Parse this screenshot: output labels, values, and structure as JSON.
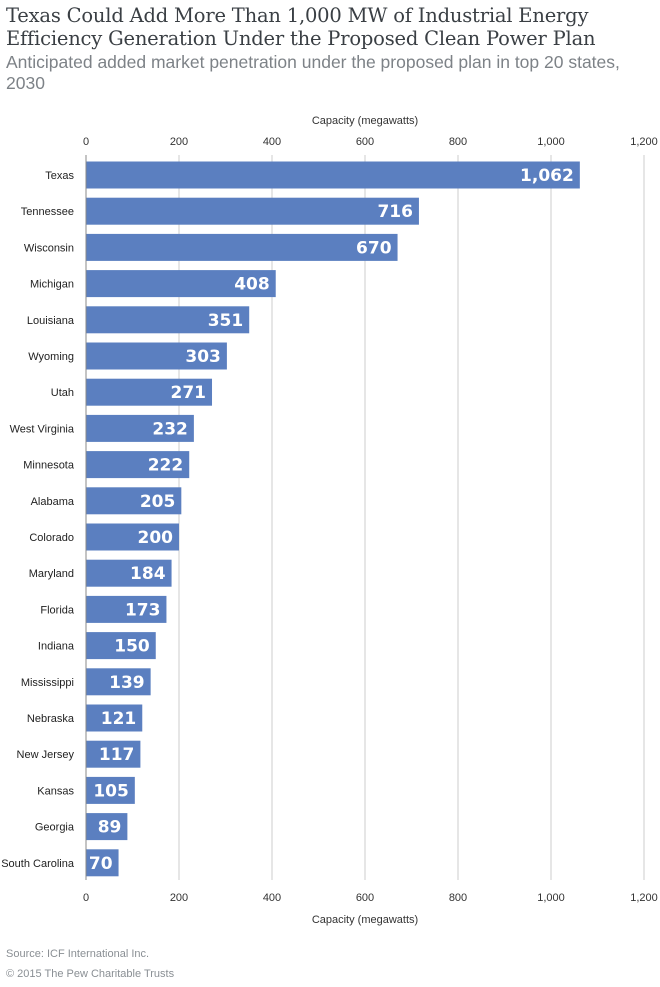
{
  "title": "Texas Could Add More Than 1,000 MW of Industrial Energy Efficiency Generation Under the Proposed Clean Power Plan",
  "subtitle": "Anticipated added market penetration under the proposed plan in top 20 states, 2030",
  "source": "Source: ICF International Inc.",
  "copyright": "© 2015 The Pew Charitable Trusts",
  "colors": {
    "bar": "#5b7fc0",
    "grid": "#cccccc",
    "axis": "#888888"
  },
  "chart_data": {
    "type": "bar",
    "orientation": "horizontal",
    "title": "Texas Could Add More Than 1,000 MW of Industrial Energy Efficiency Generation Under the Proposed Clean Power Plan",
    "subtitle": "Anticipated added market penetration under the proposed plan in top 20 states, 2030",
    "xlabel": "Capacity (megawatts)",
    "xlim": [
      0,
      1200
    ],
    "ticks": [
      0,
      200,
      400,
      600,
      800,
      1000,
      1200
    ],
    "tick_labels": [
      "0",
      "200",
      "400",
      "600",
      "800",
      "1,000",
      "1,200"
    ],
    "grid": true,
    "categories": [
      "Texas",
      "Tennessee",
      "Wisconsin",
      "Michigan",
      "Louisiana",
      "Wyoming",
      "Utah",
      "West Virginia",
      "Minnesota",
      "Alabama",
      "Colorado",
      "Maryland",
      "Florida",
      "Indiana",
      "Mississippi",
      "Nebraska",
      "New Jersey",
      "Kansas",
      "Georgia",
      "South Carolina"
    ],
    "values": [
      1062,
      716,
      670,
      408,
      351,
      303,
      271,
      232,
      222,
      205,
      200,
      184,
      173,
      150,
      139,
      121,
      117,
      105,
      89,
      70
    ],
    "value_labels": [
      "1,062",
      "716",
      "670",
      "408",
      "351",
      "303",
      "271",
      "232",
      "222",
      "205",
      "200",
      "184",
      "173",
      "150",
      "139",
      "121",
      "117",
      "105",
      "89",
      "70"
    ]
  }
}
